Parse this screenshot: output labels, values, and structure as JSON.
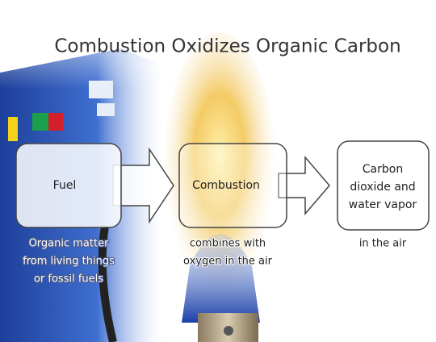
{
  "title": "Combustion Oxidizes Organic Carbon",
  "nodes": [
    {
      "label": [
        "Fuel"
      ],
      "caption": [
        "Organic matter",
        "from living things",
        "or fossil fuels"
      ]
    },
    {
      "label": [
        "Combustion"
      ],
      "caption": [
        "combines with",
        "oxygen in the air"
      ]
    },
    {
      "label": [
        "Carbon",
        "dioxide and",
        "water vapor"
      ],
      "caption": [
        "in the air"
      ]
    }
  ]
}
